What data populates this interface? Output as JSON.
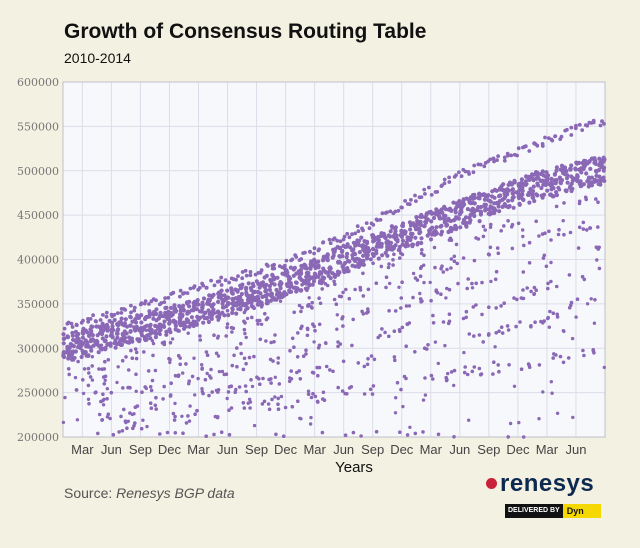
{
  "header": {
    "title": "Growth of Consensus Routing Table",
    "subtitle": "2010-2014"
  },
  "source": {
    "label": "Source:",
    "value": "Renesys BGP data"
  },
  "branding": {
    "logo_text": "renesys",
    "badge_left": "DELIVERED BY",
    "badge_right": "Dyn"
  },
  "colors": {
    "background": "#f3f1e2",
    "plot_background": "#f7f8fc",
    "grid": "#dcdde8",
    "series": "#8a68b5",
    "logo_red": "#c9213a",
    "logo_navy": "#0d2950",
    "badge_yellow": "#f5d800"
  },
  "chart_data": {
    "type": "scatter",
    "title": "Growth of Consensus Routing Table",
    "subtitle": "2010-2014",
    "xlabel": "Years",
    "ylabel": "",
    "x_tick_labels": [
      "Mar",
      "Jun",
      "Sep",
      "Dec",
      "Mar",
      "Jun",
      "Sep",
      "Dec",
      "Mar",
      "Jun",
      "Sep",
      "Dec",
      "Mar",
      "Jun",
      "Sep",
      "Dec",
      "Mar",
      "Jun"
    ],
    "x_tick_months": [
      2,
      5,
      8,
      11,
      14,
      17,
      20,
      23,
      26,
      29,
      32,
      35,
      38,
      41,
      44,
      47,
      50,
      53
    ],
    "xlim_months": [
      0,
      56
    ],
    "ylim": [
      200000,
      600000
    ],
    "y_ticks": [
      200000,
      250000,
      300000,
      350000,
      400000,
      450000,
      500000,
      550000,
      600000
    ],
    "grid": true,
    "legend": "none",
    "series": [
      {
        "main_trend": [
          [
            0,
            300000
          ],
          [
            6,
            318000
          ],
          [
            12,
            335000
          ],
          [
            18,
            355000
          ],
          [
            24,
            378000
          ],
          [
            30,
            405000
          ],
          [
            36,
            430000
          ],
          [
            42,
            455000
          ],
          [
            48,
            480000
          ],
          [
            54,
            497000
          ],
          [
            56,
            500000
          ]
        ],
        "upper_envelope": [
          [
            0,
            330000
          ],
          [
            6,
            345000
          ],
          [
            12,
            365000
          ],
          [
            18,
            385000
          ],
          [
            24,
            405000
          ],
          [
            30,
            435000
          ],
          [
            36,
            470000
          ],
          [
            42,
            505000
          ],
          [
            48,
            530000
          ],
          [
            54,
            555000
          ],
          [
            56,
            560000
          ]
        ],
        "secondary_bands": [
          [
            [
              0,
              285000
            ],
            [
              20,
              350000
            ],
            [
              40,
              420000
            ],
            [
              56,
              470000
            ]
          ],
          [
            [
              0,
              270000
            ],
            [
              20,
              330000
            ],
            [
              40,
              395000
            ],
            [
              56,
              445000
            ]
          ],
          [
            [
              0,
              255000
            ],
            [
              20,
              305000
            ],
            [
              40,
              365000
            ],
            [
              56,
              420000
            ]
          ],
          [
            [
              2,
              240000
            ],
            [
              22,
              290000
            ],
            [
              42,
              340000
            ],
            [
              56,
              390000
            ]
          ],
          [
            [
              4,
              225000
            ],
            [
              24,
              270000
            ],
            [
              44,
              315000
            ],
            [
              56,
              360000
            ]
          ],
          [
            [
              6,
              210000
            ],
            [
              26,
              245000
            ],
            [
              46,
              280000
            ],
            [
              56,
              300000
            ]
          ]
        ]
      }
    ]
  }
}
